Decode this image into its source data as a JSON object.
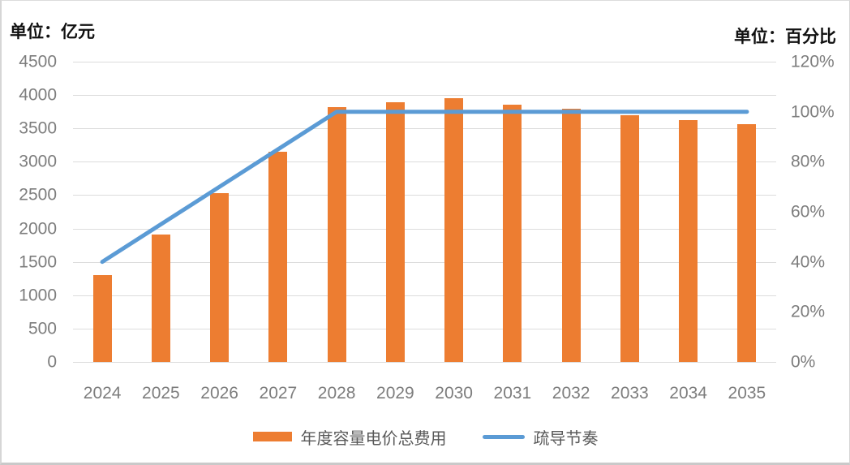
{
  "axes": {
    "left": {
      "title": "单位：亿元",
      "tick_labels": [
        "4500",
        "4000",
        "3500",
        "3000",
        "2500",
        "2000",
        "1500",
        "1000",
        "500",
        "0"
      ]
    },
    "right": {
      "title": "单位：百分比",
      "tick_labels": [
        "120%",
        "100%",
        "80%",
        "60%",
        "40%",
        "20%",
        "0%"
      ]
    }
  },
  "chart_data": {
    "type": "bar",
    "subtype": "combo-bar-line",
    "categories": [
      "2024",
      "2025",
      "2026",
      "2027",
      "2028",
      "2029",
      "2030",
      "2031",
      "2032",
      "2033",
      "2034",
      "2035"
    ],
    "series": [
      {
        "name": "年度容量电价总费用",
        "type": "bar",
        "axis": "left",
        "color": "#ED7D31",
        "values": [
          1300,
          1910,
          2530,
          3150,
          3820,
          3890,
          3950,
          3860,
          3800,
          3700,
          3620,
          3560
        ]
      },
      {
        "name": "疏导节奏",
        "type": "line",
        "axis": "right",
        "color": "#5B9BD5",
        "values_percent": [
          40,
          55,
          70,
          85,
          100,
          100,
          100,
          100,
          100,
          100,
          100,
          100
        ]
      }
    ],
    "title": "",
    "left_axis_label": "单位：亿元",
    "right_axis_label": "单位：百分比",
    "left_ylim": [
      0,
      4500
    ],
    "left_step": 500,
    "right_ylim_percent": [
      0,
      120
    ],
    "right_step_percent": 20,
    "grid": true,
    "legend_position": "bottom"
  },
  "legend": {
    "items": [
      {
        "label": "年度容量电价总费用",
        "swatch": "bar",
        "color": "#ED7D31"
      },
      {
        "label": "疏导节奏",
        "swatch": "line",
        "color": "#5B9BD5"
      }
    ]
  },
  "colors": {
    "bar": "#ED7D31",
    "line": "#5B9BD5",
    "gridline": "#dcdcdc",
    "tick_text": "#7d7d7d",
    "legend_text": "#595959"
  }
}
